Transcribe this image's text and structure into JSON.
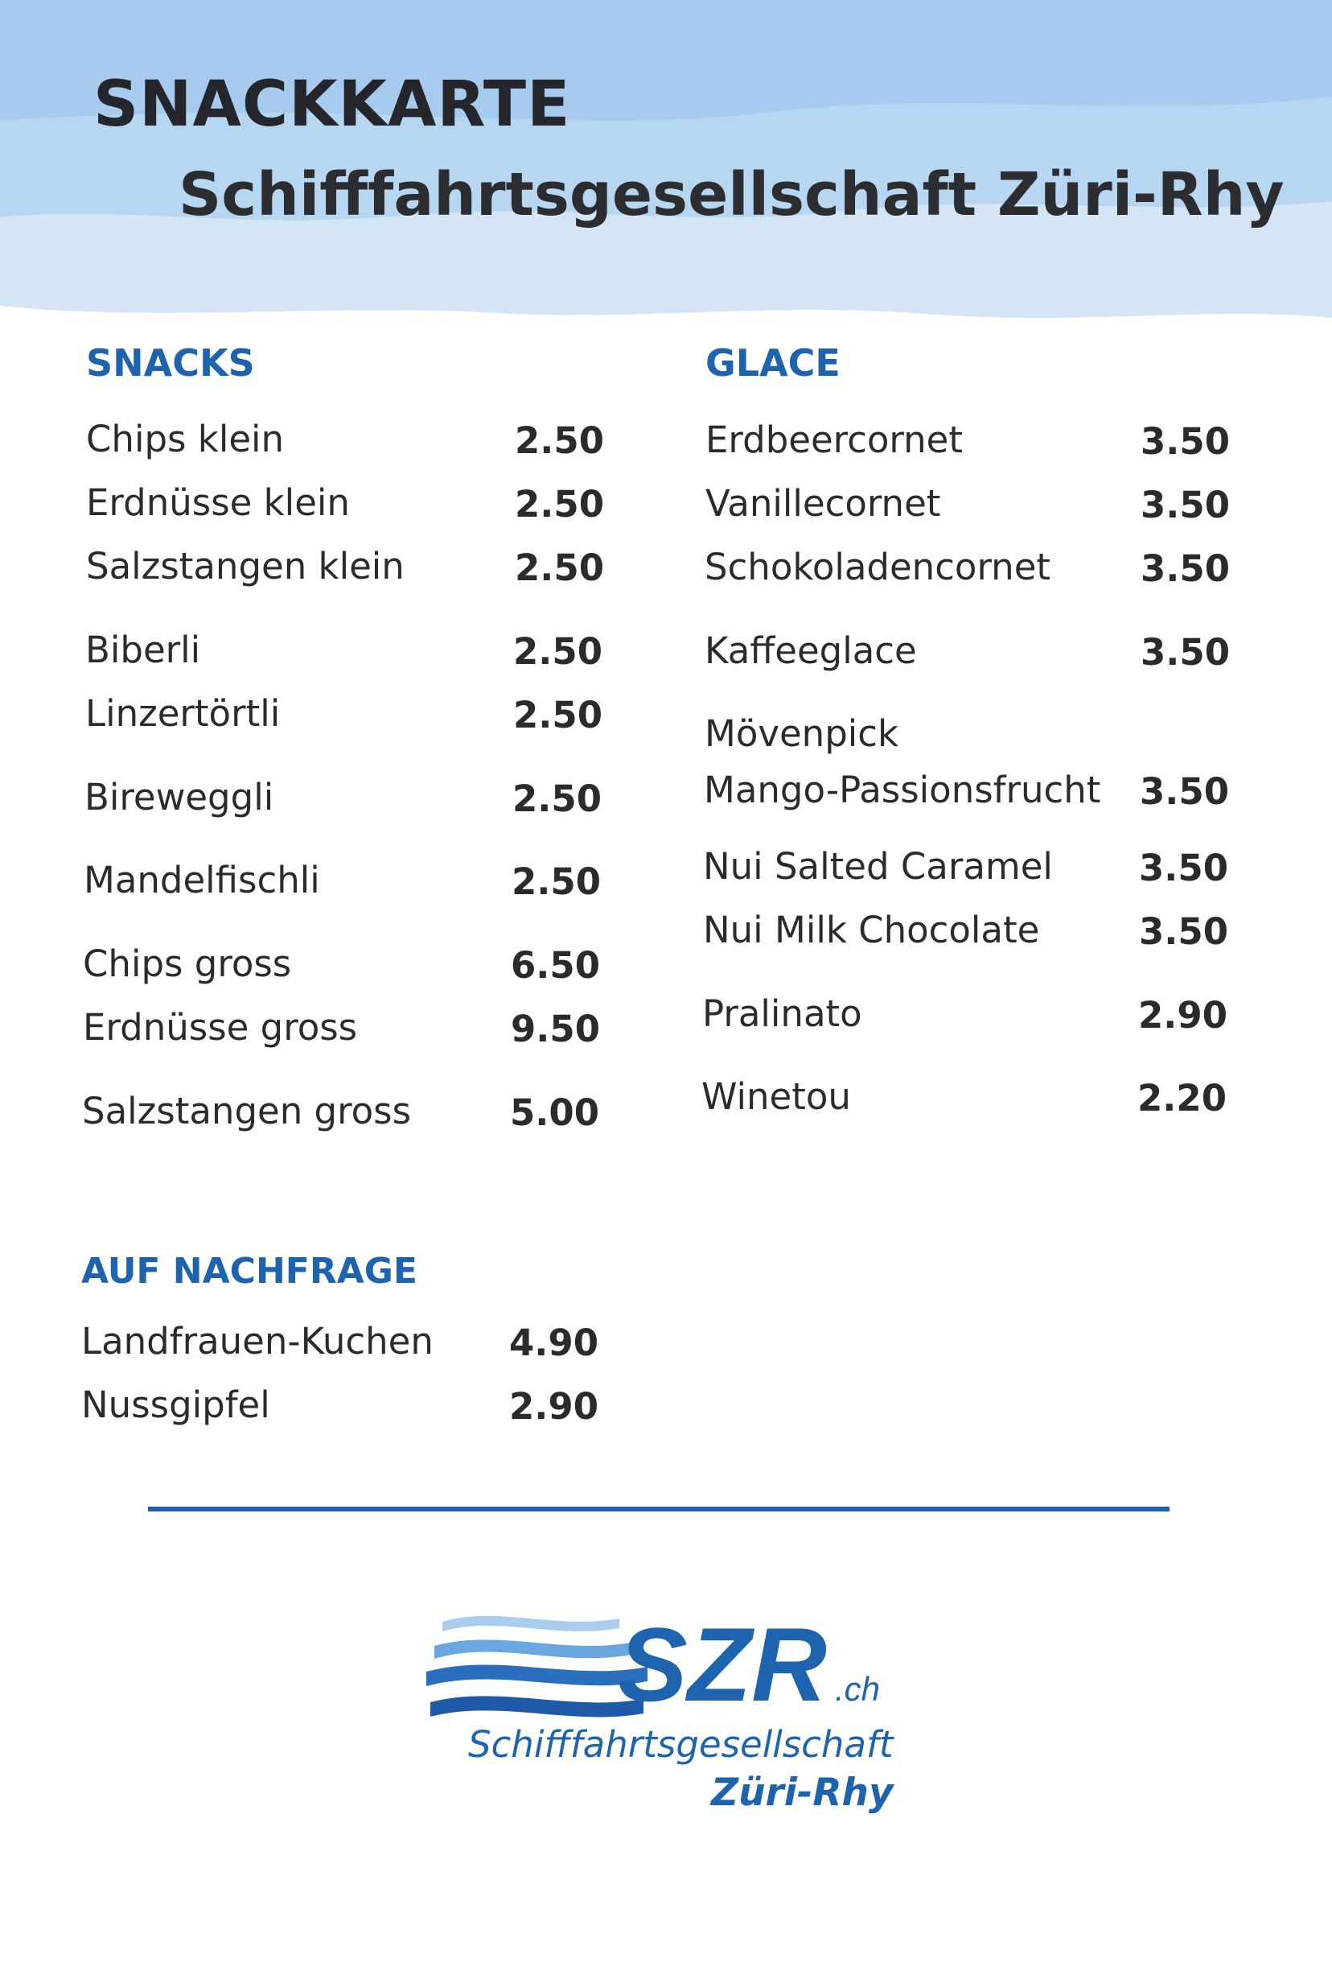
{
  "header": {
    "title": "SNACKKARTE",
    "subtitle": "Schifffahrtsgesellschaft Züri-Rhy"
  },
  "sections": {
    "snacks": {
      "heading": "SNACKS",
      "items": [
        {
          "name": "Chips klein",
          "price": "2.50"
        },
        {
          "name": "Erdnüsse klein",
          "price": "2.50"
        },
        {
          "name": "Salzstangen klein",
          "price": "2.50"
        },
        {
          "name": "Biberli",
          "price": "2.50"
        },
        {
          "name": "Linzertörtli",
          "price": "2.50"
        },
        {
          "name": "Bireweggli",
          "price": "2.50"
        },
        {
          "name": "Mandelfischli",
          "price": "2.50"
        },
        {
          "name": "Chips gross",
          "price": "6.50"
        },
        {
          "name": "Erdnüsse gross",
          "price": "9.50"
        },
        {
          "name": "Salzstangen gross",
          "price": "5.00"
        }
      ]
    },
    "glace": {
      "heading": "GLACE",
      "items": [
        {
          "name": "Erdbeercornet",
          "price": "3.50"
        },
        {
          "name": "Vanillecornet",
          "price": "3.50"
        },
        {
          "name": "Schokoladencornet",
          "price": "3.50"
        },
        {
          "name": "Kaffeeglace",
          "price": "3.50"
        },
        {
          "name": "Mövenpick",
          "name2": "Mango-Passionsfrucht",
          "price": "3.50"
        },
        {
          "name": "Nui Salted Caramel",
          "price": "3.50"
        },
        {
          "name": "Nui Milk Chocolate",
          "price": "3.50"
        },
        {
          "name": "Pralinato",
          "price": "2.90"
        },
        {
          "name": "Winetou",
          "price": "2.20"
        }
      ]
    },
    "auf_nachfrage": {
      "heading": "AUF NACHFRAGE",
      "items": [
        {
          "name": "Landfrauen-Kuchen",
          "price": "4.90"
        },
        {
          "name": "Nussgipfel",
          "price": "2.90"
        }
      ]
    }
  },
  "logo": {
    "wordmark": "SZR",
    "suffix": ".ch",
    "line1": "Schifffahrtsgesellschaft",
    "line2": "Züri-Rhy"
  },
  "colors": {
    "accent": "#1e63ad",
    "header_wave_light": "#cfe2f4",
    "header_wave_mid": "#a9cdee",
    "text": "#2b2b2b"
  }
}
